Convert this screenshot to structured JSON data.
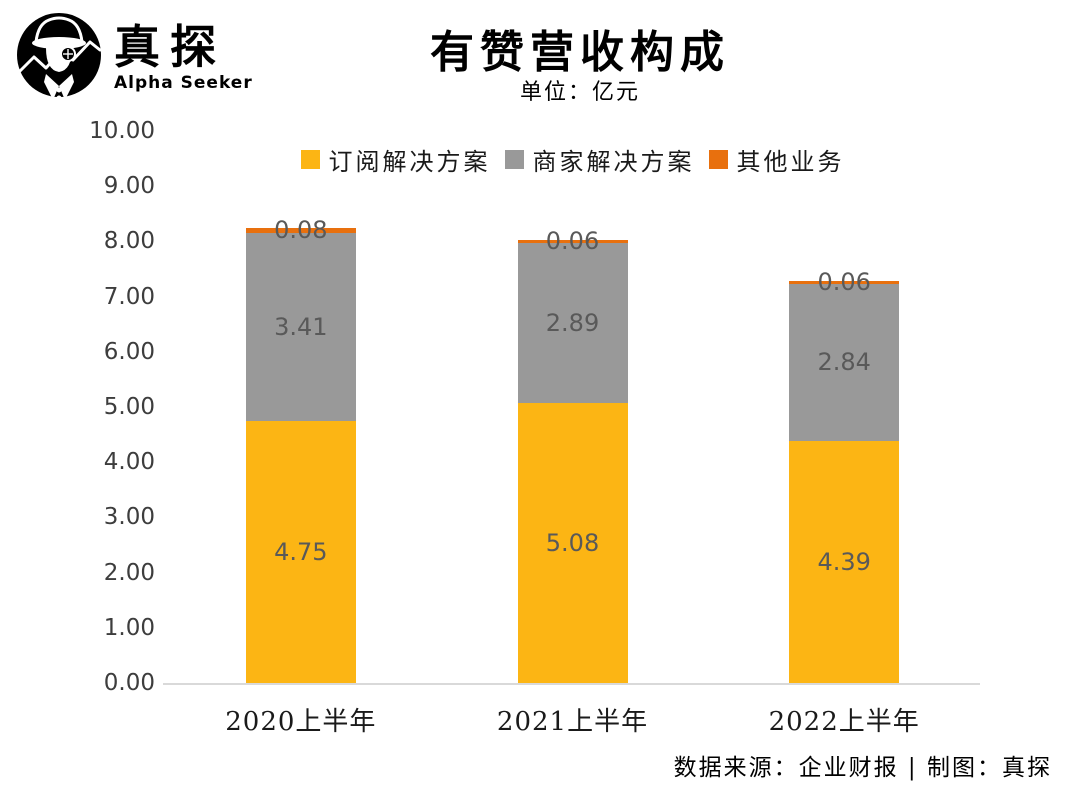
{
  "logo": {
    "name_zh": "真探",
    "name_en": "Alpha Seeker"
  },
  "title": "有赞营收构成",
  "subtitle": "单位：亿元",
  "footer": "数据来源：企业财报 | 制图：真探",
  "chart_data": {
    "type": "bar",
    "stacked": true,
    "title": "有赞营收构成",
    "unit_label": "单位：亿元",
    "categories": [
      "2020上半年",
      "2021上半年",
      "2022上半年"
    ],
    "series": [
      {
        "name": "订阅解决方案",
        "color": "#FCB514",
        "values": [
          4.75,
          5.08,
          4.39
        ]
      },
      {
        "name": "商家解决方案",
        "color": "#999999",
        "values": [
          3.41,
          2.89,
          2.84
        ]
      },
      {
        "name": "其他业务",
        "color": "#E8700E",
        "values": [
          0.08,
          0.06,
          0.06
        ]
      }
    ],
    "totals": [
      8.24,
      8.03,
      7.29
    ],
    "ylim": [
      0,
      10
    ],
    "ytick_step": 1,
    "ytick_format": "two_decimals",
    "value_label_color": "#595959",
    "axis_line_color": "#d9d9d9",
    "grid": false,
    "legend_position": "top"
  }
}
